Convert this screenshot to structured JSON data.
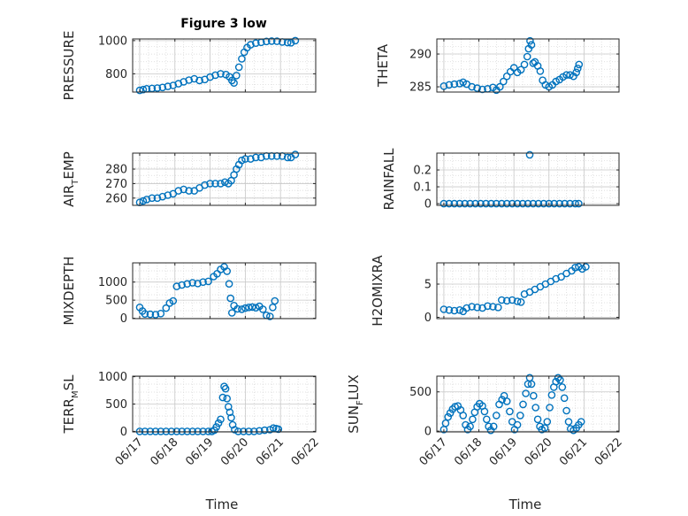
{
  "figure": {
    "title": "Figure 3 low",
    "xlabel": "Time"
  },
  "chart_data": [
    {
      "type": "scatter",
      "ylabel": "PRESSURE",
      "ylabel_parts": [
        "PRESSURE"
      ],
      "yticks": [
        "800",
        "1000"
      ],
      "ylim": [
        690,
        1010
      ],
      "ytick_values": [
        800,
        1000
      ],
      "xticks": [],
      "points": [
        [
          0.0,
          700
        ],
        [
          0.1,
          705
        ],
        [
          0.2,
          710
        ],
        [
          0.35,
          712
        ],
        [
          0.5,
          714
        ],
        [
          0.65,
          718
        ],
        [
          0.8,
          724
        ],
        [
          0.95,
          730
        ],
        [
          1.1,
          740
        ],
        [
          1.25,
          752
        ],
        [
          1.4,
          762
        ],
        [
          1.55,
          770
        ],
        [
          1.7,
          760
        ],
        [
          1.85,
          766
        ],
        [
          2.0,
          780
        ],
        [
          2.15,
          792
        ],
        [
          2.3,
          800
        ],
        [
          2.45,
          795
        ],
        [
          2.55,
          782
        ],
        [
          2.62,
          760
        ],
        [
          2.68,
          745
        ],
        [
          2.75,
          790
        ],
        [
          2.82,
          840
        ],
        [
          2.9,
          890
        ],
        [
          2.97,
          930
        ],
        [
          3.05,
          958
        ],
        [
          3.15,
          975
        ],
        [
          3.3,
          985
        ],
        [
          3.45,
          990
        ],
        [
          3.6,
          995
        ],
        [
          3.75,
          997
        ],
        [
          3.9,
          996
        ],
        [
          4.05,
          992
        ],
        [
          4.2,
          988
        ],
        [
          4.3,
          987
        ],
        [
          4.42,
          1000
        ]
      ]
    },
    {
      "type": "scatter",
      "ylabel": "THETA",
      "ylabel_parts": [
        "THETA"
      ],
      "yticks": [
        "285",
        "290"
      ],
      "ylim": [
        284.2,
        292.3
      ],
      "ytick_values": [
        285,
        290
      ],
      "xticks": [],
      "points": [
        [
          0.0,
          285.1
        ],
        [
          0.15,
          285.3
        ],
        [
          0.3,
          285.4
        ],
        [
          0.45,
          285.5
        ],
        [
          0.55,
          285.7
        ],
        [
          0.65,
          285.4
        ],
        [
          0.8,
          285.0
        ],
        [
          0.95,
          284.8
        ],
        [
          1.1,
          284.6
        ],
        [
          1.25,
          284.7
        ],
        [
          1.4,
          284.9
        ],
        [
          1.5,
          284.5
        ],
        [
          1.6,
          285.0
        ],
        [
          1.7,
          285.8
        ],
        [
          1.8,
          286.6
        ],
        [
          1.9,
          287.3
        ],
        [
          2.0,
          287.9
        ],
        [
          2.1,
          287.2
        ],
        [
          2.2,
          287.6
        ],
        [
          2.3,
          288.4
        ],
        [
          2.38,
          289.6
        ],
        [
          2.42,
          290.8
        ],
        [
          2.46,
          292.0
        ],
        [
          2.5,
          291.4
        ],
        [
          2.55,
          288.6
        ],
        [
          2.6,
          288.8
        ],
        [
          2.68,
          288.2
        ],
        [
          2.75,
          287.4
        ],
        [
          2.82,
          286.0
        ],
        [
          2.9,
          285.3
        ],
        [
          3.0,
          285.0
        ],
        [
          3.1,
          285.3
        ],
        [
          3.2,
          285.8
        ],
        [
          3.3,
          286.1
        ],
        [
          3.4,
          286.5
        ],
        [
          3.5,
          286.8
        ],
        [
          3.6,
          286.8
        ],
        [
          3.7,
          286.6
        ],
        [
          3.78,
          287.2
        ],
        [
          3.82,
          287.8
        ],
        [
          3.86,
          288.4
        ]
      ]
    },
    {
      "type": "scatter",
      "ylabel": "AIR_TEMP",
      "ylabel_parts": [
        "AIR",
        "T",
        "EMP"
      ],
      "yticks": [
        "260",
        "270",
        "280"
      ],
      "ylim": [
        255,
        291
      ],
      "ytick_values": [
        260,
        270,
        280
      ],
      "xticks": [],
      "points": [
        [
          0.0,
          257
        ],
        [
          0.1,
          258
        ],
        [
          0.2,
          259
        ],
        [
          0.35,
          260
        ],
        [
          0.5,
          260
        ],
        [
          0.65,
          261
        ],
        [
          0.8,
          262
        ],
        [
          0.95,
          263
        ],
        [
          1.1,
          265
        ],
        [
          1.25,
          266
        ],
        [
          1.4,
          265
        ],
        [
          1.55,
          265
        ],
        [
          1.7,
          267
        ],
        [
          1.85,
          269
        ],
        [
          2.0,
          270
        ],
        [
          2.15,
          270
        ],
        [
          2.3,
          270
        ],
        [
          2.42,
          271
        ],
        [
          2.52,
          270
        ],
        [
          2.6,
          272
        ],
        [
          2.68,
          276
        ],
        [
          2.75,
          280
        ],
        [
          2.82,
          283
        ],
        [
          2.9,
          286
        ],
        [
          3.0,
          287
        ],
        [
          3.15,
          287
        ],
        [
          3.3,
          288
        ],
        [
          3.45,
          288
        ],
        [
          3.6,
          289
        ],
        [
          3.75,
          289
        ],
        [
          3.9,
          289
        ],
        [
          4.05,
          289
        ],
        [
          4.2,
          288
        ],
        [
          4.3,
          288
        ],
        [
          4.42,
          290
        ]
      ]
    },
    {
      "type": "scatter",
      "ylabel": "RAINFALL",
      "ylabel_parts": [
        "RAINFALL"
      ],
      "yticks": [
        "0",
        "0.1",
        "0.2"
      ],
      "ylim": [
        -0.01,
        0.3
      ],
      "ytick_values": [
        0,
        0.1,
        0.2
      ],
      "xticks": [],
      "points": [
        [
          0.0,
          0
        ],
        [
          0.15,
          0
        ],
        [
          0.3,
          0
        ],
        [
          0.45,
          0
        ],
        [
          0.6,
          0
        ],
        [
          0.75,
          0
        ],
        [
          0.9,
          0
        ],
        [
          1.05,
          0
        ],
        [
          1.2,
          0
        ],
        [
          1.35,
          0
        ],
        [
          1.5,
          0
        ],
        [
          1.65,
          0
        ],
        [
          1.8,
          0
        ],
        [
          1.95,
          0
        ],
        [
          2.1,
          0
        ],
        [
          2.25,
          0
        ],
        [
          2.4,
          0
        ],
        [
          2.45,
          0.29
        ],
        [
          2.55,
          0
        ],
        [
          2.7,
          0
        ],
        [
          2.85,
          0
        ],
        [
          3.0,
          0
        ],
        [
          3.15,
          0
        ],
        [
          3.3,
          0
        ],
        [
          3.45,
          0
        ],
        [
          3.6,
          0
        ],
        [
          3.75,
          0
        ],
        [
          3.85,
          0
        ]
      ]
    },
    {
      "type": "scatter",
      "ylabel": "MIXDEPTH",
      "ylabel_parts": [
        "MIXDEPTH"
      ],
      "yticks": [
        "0",
        "500",
        "1000"
      ],
      "ylim": [
        -10,
        1530
      ],
      "ytick_values": [
        0,
        500,
        1000
      ],
      "xticks": [],
      "points": [
        [
          0.0,
          300
        ],
        [
          0.08,
          200
        ],
        [
          0.15,
          120
        ],
        [
          0.3,
          110
        ],
        [
          0.45,
          100
        ],
        [
          0.6,
          130
        ],
        [
          0.75,
          280
        ],
        [
          0.85,
          420
        ],
        [
          0.95,
          480
        ],
        [
          1.05,
          880
        ],
        [
          1.2,
          920
        ],
        [
          1.35,
          950
        ],
        [
          1.5,
          980
        ],
        [
          1.65,
          960
        ],
        [
          1.8,
          1000
        ],
        [
          1.95,
          1020
        ],
        [
          2.1,
          1150
        ],
        [
          2.2,
          1230
        ],
        [
          2.3,
          1350
        ],
        [
          2.4,
          1420
        ],
        [
          2.48,
          1300
        ],
        [
          2.54,
          950
        ],
        [
          2.58,
          550
        ],
        [
          2.62,
          150
        ],
        [
          2.68,
          350
        ],
        [
          2.78,
          260
        ],
        [
          2.9,
          250
        ],
        [
          3.0,
          280
        ],
        [
          3.1,
          300
        ],
        [
          3.2,
          310
        ],
        [
          3.3,
          290
        ],
        [
          3.4,
          330
        ],
        [
          3.5,
          250
        ],
        [
          3.6,
          80
        ],
        [
          3.7,
          50
        ],
        [
          3.78,
          300
        ],
        [
          3.84,
          480
        ]
      ]
    },
    {
      "type": "scatter",
      "ylabel": "H2OMIXRA",
      "ylabel_parts": [
        "H2OMIXRA"
      ],
      "yticks": [
        "0",
        "5"
      ],
      "ylim": [
        -0.2,
        8.2
      ],
      "ytick_values": [
        0,
        5
      ],
      "xticks": [],
      "points": [
        [
          0.0,
          1.2
        ],
        [
          0.15,
          1.1
        ],
        [
          0.3,
          1.0
        ],
        [
          0.45,
          1.1
        ],
        [
          0.55,
          0.9
        ],
        [
          0.65,
          1.4
        ],
        [
          0.8,
          1.6
        ],
        [
          0.95,
          1.5
        ],
        [
          1.1,
          1.4
        ],
        [
          1.25,
          1.7
        ],
        [
          1.4,
          1.6
        ],
        [
          1.55,
          1.5
        ],
        [
          1.65,
          2.6
        ],
        [
          1.8,
          2.5
        ],
        [
          1.95,
          2.6
        ],
        [
          2.1,
          2.4
        ],
        [
          2.2,
          2.3
        ],
        [
          2.3,
          3.5
        ],
        [
          2.45,
          3.8
        ],
        [
          2.6,
          4.2
        ],
        [
          2.75,
          4.6
        ],
        [
          2.9,
          5.0
        ],
        [
          3.05,
          5.4
        ],
        [
          3.2,
          5.8
        ],
        [
          3.35,
          6.1
        ],
        [
          3.5,
          6.6
        ],
        [
          3.65,
          7.0
        ],
        [
          3.75,
          7.5
        ],
        [
          3.85,
          7.6
        ],
        [
          3.95,
          7.3
        ],
        [
          4.05,
          7.6
        ]
      ]
    },
    {
      "type": "scatter",
      "ylabel": "TERR_MSL",
      "ylabel_parts": [
        "TERR",
        "M",
        "SL"
      ],
      "yticks": [
        "0",
        "500",
        "1000"
      ],
      "ylim": [
        -10,
        1010
      ],
      "ytick_values": [
        0,
        500,
        1000
      ],
      "xticks": [
        "06/17",
        "06/18",
        "06/19",
        "06/20",
        "06/21",
        "06/22"
      ],
      "xtick_values": [
        0,
        1,
        2,
        3,
        4,
        5
      ],
      "points": [
        [
          0.0,
          0
        ],
        [
          0.15,
          0
        ],
        [
          0.3,
          0
        ],
        [
          0.45,
          0
        ],
        [
          0.6,
          0
        ],
        [
          0.75,
          0
        ],
        [
          0.9,
          0
        ],
        [
          1.05,
          0
        ],
        [
          1.2,
          0
        ],
        [
          1.35,
          0
        ],
        [
          1.5,
          0
        ],
        [
          1.65,
          0
        ],
        [
          1.8,
          0
        ],
        [
          1.95,
          0
        ],
        [
          2.05,
          0
        ],
        [
          2.12,
          20
        ],
        [
          2.18,
          80
        ],
        [
          2.24,
          150
        ],
        [
          2.3,
          220
        ],
        [
          2.36,
          620
        ],
        [
          2.4,
          820
        ],
        [
          2.44,
          780
        ],
        [
          2.48,
          600
        ],
        [
          2.52,
          450
        ],
        [
          2.56,
          350
        ],
        [
          2.6,
          250
        ],
        [
          2.64,
          120
        ],
        [
          2.7,
          30
        ],
        [
          2.8,
          0
        ],
        [
          2.95,
          0
        ],
        [
          3.1,
          0
        ],
        [
          3.25,
          0
        ],
        [
          3.4,
          10
        ],
        [
          3.55,
          20
        ],
        [
          3.7,
          30
        ],
        [
          3.8,
          60
        ],
        [
          3.88,
          50
        ],
        [
          3.94,
          40
        ]
      ]
    },
    {
      "type": "scatter",
      "ylabel": "SUN_FLUX",
      "ylabel_parts": [
        "SUN",
        "F",
        "LUX"
      ],
      "yticks": [
        "0",
        "500"
      ],
      "ylim": [
        -10,
        700
      ],
      "ytick_values": [
        0,
        500
      ],
      "xticks": [
        "06/17",
        "06/18",
        "06/19",
        "06/20",
        "06/21",
        "06/22"
      ],
      "xtick_values": [
        0,
        1,
        2,
        3,
        4,
        5
      ],
      "points": [
        [
          0.0,
          20
        ],
        [
          0.05,
          100
        ],
        [
          0.12,
          180
        ],
        [
          0.18,
          230
        ],
        [
          0.25,
          280
        ],
        [
          0.32,
          310
        ],
        [
          0.4,
          320
        ],
        [
          0.48,
          270
        ],
        [
          0.55,
          200
        ],
        [
          0.62,
          80
        ],
        [
          0.68,
          20
        ],
        [
          0.75,
          60
        ],
        [
          0.82,
          150
        ],
        [
          0.88,
          240
        ],
        [
          0.95,
          310
        ],
        [
          1.02,
          350
        ],
        [
          1.1,
          320
        ],
        [
          1.16,
          250
        ],
        [
          1.22,
          150
        ],
        [
          1.28,
          60
        ],
        [
          1.34,
          10
        ],
        [
          1.42,
          60
        ],
        [
          1.5,
          200
        ],
        [
          1.58,
          340
        ],
        [
          1.66,
          400
        ],
        [
          1.72,
          450
        ],
        [
          1.8,
          380
        ],
        [
          1.88,
          250
        ],
        [
          1.95,
          120
        ],
        [
          2.02,
          20
        ],
        [
          2.1,
          80
        ],
        [
          2.18,
          200
        ],
        [
          2.26,
          340
        ],
        [
          2.34,
          480
        ],
        [
          2.4,
          600
        ],
        [
          2.45,
          680
        ],
        [
          2.5,
          600
        ],
        [
          2.56,
          450
        ],
        [
          2.62,
          300
        ],
        [
          2.68,
          150
        ],
        [
          2.74,
          60
        ],
        [
          2.8,
          20
        ],
        [
          2.88,
          40
        ],
        [
          2.95,
          120
        ],
        [
          3.02,
          300
        ],
        [
          3.08,
          460
        ],
        [
          3.14,
          560
        ],
        [
          3.2,
          630
        ],
        [
          3.26,
          680
        ],
        [
          3.32,
          650
        ],
        [
          3.38,
          560
        ],
        [
          3.44,
          420
        ],
        [
          3.5,
          260
        ],
        [
          3.56,
          120
        ],
        [
          3.62,
          30
        ],
        [
          3.7,
          10
        ],
        [
          3.78,
          40
        ],
        [
          3.85,
          80
        ],
        [
          3.92,
          120
        ]
      ]
    }
  ]
}
